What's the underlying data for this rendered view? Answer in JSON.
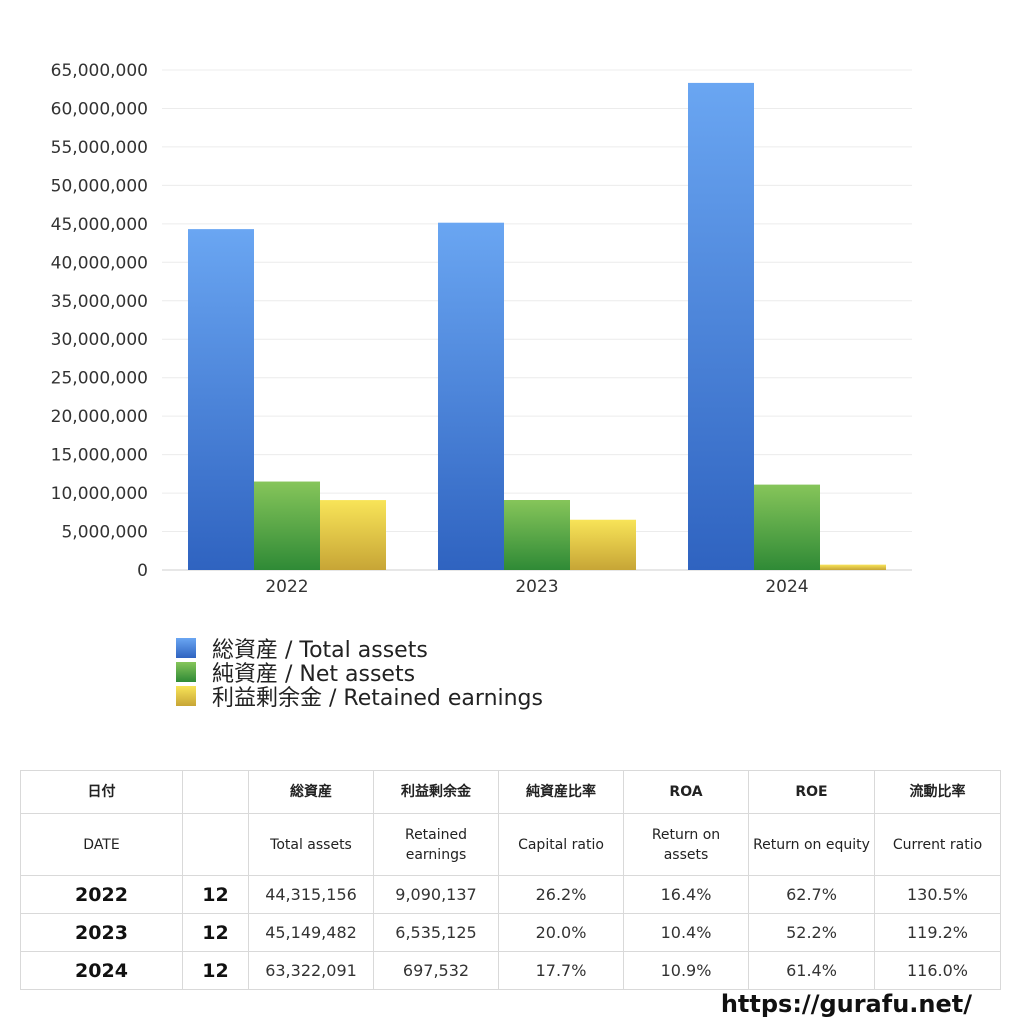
{
  "chart_data": {
    "type": "bar",
    "categories": [
      "2022",
      "2023",
      "2024"
    ],
    "series": [
      {
        "name": "総資産 / Total assets",
        "values": [
          44315156,
          45149482,
          63322091
        ]
      },
      {
        "name": "純資産 / Net assets",
        "values": [
          11500000,
          9100000,
          11100000
        ]
      },
      {
        "name": "利益剰余金 / Retained earnings",
        "values": [
          9090137,
          6535125,
          697532
        ]
      }
    ],
    "ylim": [
      0,
      65000000
    ],
    "y_ticks": [
      "0",
      "5,000,000",
      "10,000,000",
      "15,000,000",
      "20,000,000",
      "25,000,000",
      "30,000,000",
      "35,000,000",
      "40,000,000",
      "45,000,000",
      "50,000,000",
      "55,000,000",
      "60,000,000",
      "65,000,000"
    ],
    "grid": true,
    "legend_position": "bottom-left",
    "colors": {
      "total_assets": [
        "#6aa6f2",
        "#2f63c0"
      ],
      "net_assets": [
        "#86c55a",
        "#2f8a36"
      ],
      "retained_earnings": [
        "#f8e458",
        "#c7a536"
      ]
    }
  },
  "table": {
    "headers_jp": [
      "日付",
      "",
      "総資産",
      "利益剰余金",
      "純資産比率",
      "ROA",
      "ROE",
      "流動比率"
    ],
    "headers_en": [
      "DATE",
      "",
      "Total assets",
      "Retained earnings",
      "Capital ratio",
      "Return on assets",
      "Return on equity",
      "Current ratio"
    ],
    "rows": [
      {
        "year": "2022",
        "month": "12",
        "total_assets": "44,315,156",
        "retained_earnings": "9,090,137",
        "capital_ratio": "26.2%",
        "roa": "16.4%",
        "roe": "62.7%",
        "current_ratio": "130.5%"
      },
      {
        "year": "2023",
        "month": "12",
        "total_assets": "45,149,482",
        "retained_earnings": "6,535,125",
        "capital_ratio": "20.0%",
        "roa": "10.4%",
        "roe": "52.2%",
        "current_ratio": "119.2%"
      },
      {
        "year": "2024",
        "month": "12",
        "total_assets": "63,322,091",
        "retained_earnings": "697,532",
        "capital_ratio": "17.7%",
        "roa": "10.9%",
        "roe": "61.4%",
        "current_ratio": "116.0%"
      }
    ]
  },
  "footer": {
    "url": "https://gurafu.net/"
  }
}
